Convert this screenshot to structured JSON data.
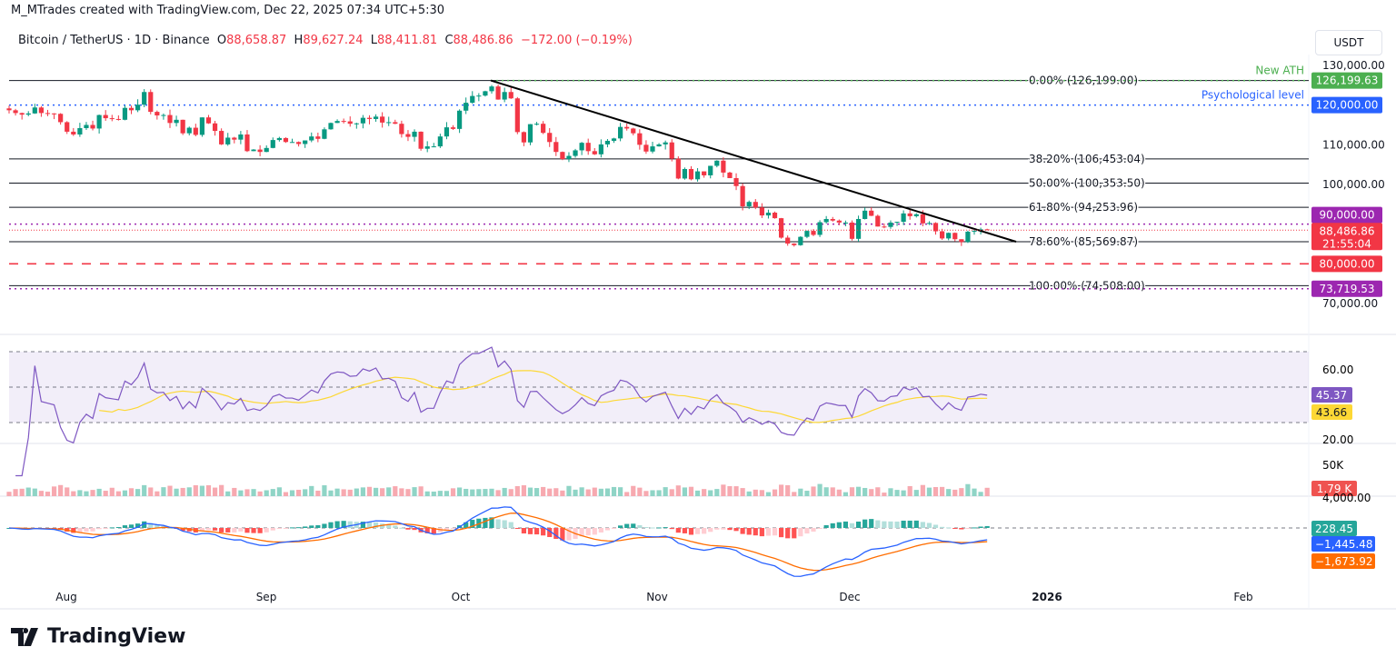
{
  "credit": "M_MTrades created with TradingView.com, Dec 22, 2025 07:34 UTC+5:30",
  "legend": {
    "symbol": "Bitcoin / TetherUS · 1D · Binance",
    "o_label": "O",
    "o": "88,658.87",
    "h_label": "H",
    "h": "89,627.24",
    "l_label": "L",
    "l": "88,411.81",
    "c_label": "C",
    "c": "88,486.86",
    "change": "−172.00 (−0.19%)"
  },
  "currency": "USDT",
  "brand": "TradingView",
  "colors": {
    "up": "#089981",
    "down": "#f23645",
    "ath": "#4caf50",
    "psych": "#2962ff",
    "purple": "#9c27b0",
    "rsi": "#7e57c2",
    "rsi_ma": "#fdd835",
    "macd": "#2962ff",
    "signal": "#ff6d00"
  },
  "chart_data": {
    "type": "candlestick",
    "interval": "1D",
    "first_date": "2025-07-23",
    "closes": [
      118700,
      118000,
      117600,
      117900,
      119400,
      118000,
      117900,
      117800,
      115700,
      113300,
      112600,
      114200,
      115000,
      114100,
      117500,
      116700,
      116500,
      116300,
      119300,
      118700,
      120100,
      123300,
      118300,
      117400,
      117500,
      115500,
      116300,
      112900,
      114300,
      112500,
      116900,
      115400,
      113500,
      110100,
      111800,
      111300,
      112600,
      108400,
      108800,
      108200,
      109200,
      111200,
      111700,
      110700,
      110700,
      110200,
      111100,
      112100,
      111500,
      113900,
      115500,
      116000,
      115900,
      115300,
      115400,
      116800,
      116500,
      117100,
      115600,
      115700,
      115300,
      112700,
      112000,
      113300,
      109000,
      109600,
      109600,
      112100,
      114400,
      114000,
      118600,
      120600,
      122300,
      122400,
      123500,
      124700,
      121400,
      123300,
      121700,
      113200,
      110600,
      115200,
      115300,
      113000,
      110700,
      108200,
      106400,
      107200,
      108600,
      110500,
      108400,
      107600,
      110100,
      111000,
      111600,
      114500,
      114100,
      112900,
      110000,
      108300,
      109600,
      110100,
      110600,
      106500,
      101500,
      103900,
      101300,
      103300,
      102300,
      104700,
      106000,
      103000,
      101600,
      99600,
      94500,
      95600,
      94200,
      92200,
      92900,
      91500,
      86600,
      85100,
      84700,
      86800,
      88300,
      87300,
      90500,
      91300,
      90900,
      90400,
      90400,
      86300,
      91300,
      93400,
      92100,
      89400,
      89300,
      90400,
      90600,
      92700,
      92000,
      92500,
      90200,
      90300,
      88200,
      86400,
      87800,
      86200,
      85500,
      88100,
      88300,
      88700,
      88486.86
    ],
    "price_axis": {
      "ticks": [
        "130,000.00",
        "110,000.00",
        "100,000.00",
        "70,000.00"
      ],
      "range": [
        70000,
        130000
      ]
    },
    "time_axis": {
      "ticks": [
        "Aug",
        "Sep",
        "Oct",
        "Nov",
        "Dec",
        "2026",
        "Feb"
      ]
    },
    "fib_levels": [
      {
        "label": "0.00% (126,199.00)",
        "value": 126199
      },
      {
        "label": "38.20% (106,453.04)",
        "value": 106453.04
      },
      {
        "label": "50.00% (100,353.50)",
        "value": 100353.5
      },
      {
        "label": "61.80% (94,253.96)",
        "value": 94253.96
      },
      {
        "label": "78.60% (85,569.87)",
        "value": 85569.87
      },
      {
        "label": "100.00% (74,508.00)",
        "value": 74508
      }
    ],
    "horizontal_lines": [
      {
        "name": "New ATH",
        "value": 126199.63,
        "tag": "126,199.63",
        "color": "#4caf50"
      },
      {
        "name": "Psychological level",
        "value": 120000,
        "tag": "120,000.00",
        "color": "#2962ff"
      },
      {
        "value": 90000,
        "tag": "90,000.00",
        "color": "#9c27b0"
      },
      {
        "value": 80000,
        "tag": "80,000.00",
        "color": "#f23645"
      },
      {
        "value": 73719.53,
        "tag": "73,719.53",
        "color": "#9c27b0"
      }
    ],
    "last_price": {
      "tag": "88,486.86",
      "countdown": "21:55:04"
    },
    "trendline": {
      "from": {
        "date": "2025-10-06",
        "value": 126199
      },
      "to": {
        "date": "2025-12-27",
        "value": 85569.87
      }
    },
    "rsi": {
      "ticks": [
        "60.00",
        "20.00"
      ],
      "value": "45.37",
      "ma": "43.66",
      "bands": [
        70,
        50,
        30
      ]
    },
    "volume": {
      "tick": "50K",
      "value": "1.79 K"
    },
    "macd": {
      "tick": "4,000.00",
      "hist": "228.45",
      "macd": "−1,445.48",
      "signal": "−1,673.92"
    }
  }
}
